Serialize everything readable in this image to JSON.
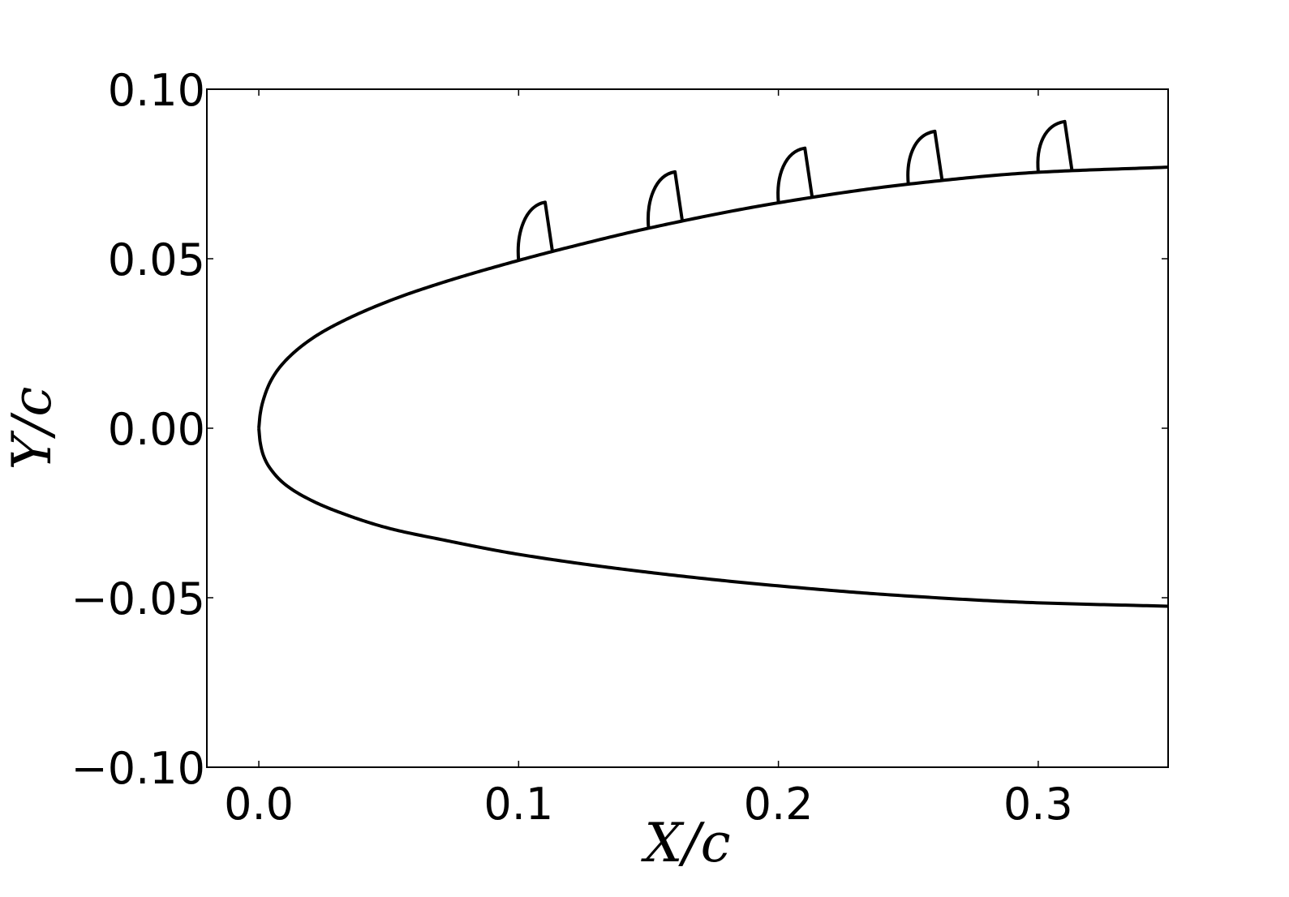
{
  "chart_data": {
    "type": "line",
    "title": "",
    "xlabel": "X/c",
    "ylabel": "Y/c",
    "xlim": [
      -0.02,
      0.35
    ],
    "ylim": [
      -0.1,
      0.1
    ],
    "x_ticks": [
      {
        "value": 0.0,
        "label": "0.0"
      },
      {
        "value": 0.1,
        "label": "0.1"
      },
      {
        "value": 0.2,
        "label": "0.2"
      },
      {
        "value": 0.3,
        "label": "0.3"
      }
    ],
    "y_ticks": [
      {
        "value": 0.1,
        "label": "0.10"
      },
      {
        "value": 0.05,
        "label": "0.05"
      },
      {
        "value": 0.0,
        "label": "0.00"
      },
      {
        "value": -0.05,
        "label": "−0.05"
      },
      {
        "value": -0.1,
        "label": "−0.10"
      }
    ],
    "grid": false,
    "line_color": "#000000",
    "series": [
      {
        "part": "upper-surface",
        "x": [
          0.0,
          0.0005,
          0.002,
          0.005,
          0.01,
          0.02,
          0.03,
          0.05,
          0.07,
          0.1,
          0.12,
          0.15,
          0.2,
          0.25,
          0.3,
          0.35
        ],
        "y": [
          0.0,
          0.004,
          0.009,
          0.0145,
          0.0197,
          0.0262,
          0.0307,
          0.0375,
          0.0428,
          0.0495,
          0.0535,
          0.059,
          0.0665,
          0.072,
          0.0755,
          0.077
        ]
      },
      {
        "part": "lower-surface",
        "x": [
          0.0,
          0.0005,
          0.002,
          0.005,
          0.01,
          0.02,
          0.03,
          0.05,
          0.07,
          0.1,
          0.15,
          0.2,
          0.25,
          0.3,
          0.35
        ],
        "y": [
          0.0,
          -0.004,
          -0.0085,
          -0.0125,
          -0.0165,
          -0.0212,
          -0.0245,
          -0.0295,
          -0.0328,
          -0.0372,
          -0.0425,
          -0.0465,
          -0.0495,
          -0.0515,
          -0.0525
        ]
      }
    ],
    "bumps": [
      {
        "x_start": 0.1,
        "x_end": 0.113,
        "height": 0.0145
      },
      {
        "x_start": 0.15,
        "x_end": 0.163,
        "height": 0.0145
      },
      {
        "x_start": 0.2,
        "x_end": 0.213,
        "height": 0.0145
      },
      {
        "x_start": 0.25,
        "x_end": 0.263,
        "height": 0.0145
      },
      {
        "x_start": 0.3,
        "x_end": 0.313,
        "height": 0.0145
      }
    ]
  }
}
